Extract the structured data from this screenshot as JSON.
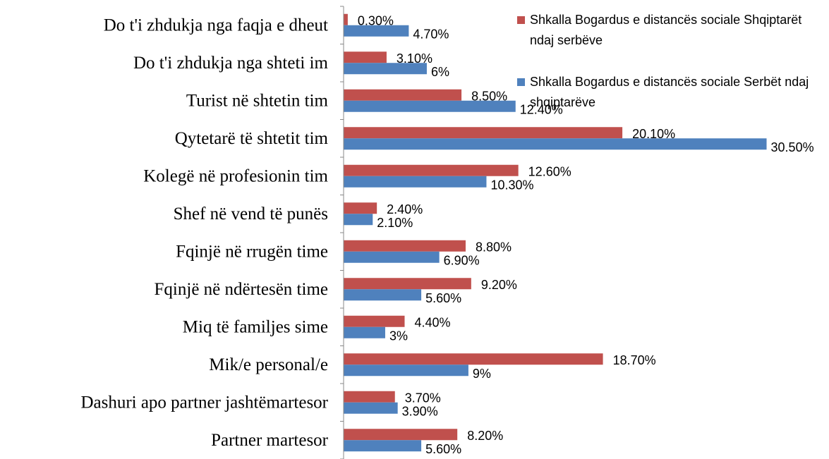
{
  "chart_data": {
    "type": "hbar",
    "categories": [
      "Do t'i zhdukja nga faqja e dheut",
      "Do t'i zhdukja nga shteti im",
      "Turist në shtetin tim",
      "Qytetarë të shtetit tim",
      "Kolegë në profesionin tim",
      "Shef në vend të punës",
      "Fqinjë në rrugën time",
      "Fqinjë në ndërtesën time",
      "Miq të familjes sime",
      "Mik/e personal/e",
      "Dashuri apo partner jashtëmartesor",
      "Partner martesor"
    ],
    "series": [
      {
        "name": "Shkalla Bogardus e distancës sociale Shqiptarët ndaj serbëve",
        "color": "#c0504d",
        "values": [
          0.3,
          3.1,
          8.5,
          20.1,
          12.6,
          2.4,
          8.8,
          9.2,
          4.4,
          18.7,
          3.7,
          8.2
        ],
        "value_labels": [
          "0.30%",
          "3.10%",
          "8.50%",
          "20.10%",
          "12.60%",
          "2.40%",
          "8.80%",
          "9.20%",
          "4.40%",
          "18.70%",
          "3.70%",
          "8.20%"
        ]
      },
      {
        "name": "Shkalla Bogardus e distancës sociale Serbët ndaj shqiptarëve",
        "color": "#4f81bd",
        "values": [
          4.7,
          6,
          12.4,
          30.5,
          10.3,
          2.1,
          6.9,
          5.6,
          3,
          9,
          3.9,
          5.6
        ],
        "value_labels": [
          "4.70%",
          "6%",
          "12.40%",
          "30.50%",
          "10.30%",
          "2.10%",
          "6.90%",
          "5.60%",
          "3%",
          "9%",
          "3.90%",
          "5.60%"
        ]
      }
    ],
    "xlim": [
      0,
      35
    ],
    "legend": "top-right"
  }
}
